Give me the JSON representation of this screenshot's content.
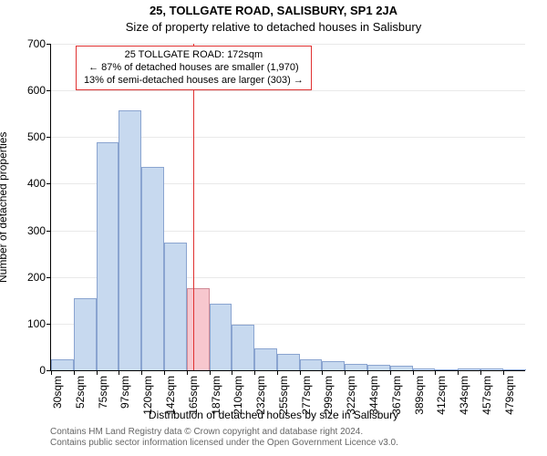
{
  "title": "25, TOLLGATE ROAD, SALISBURY, SP1 2JA",
  "subtitle": "Size of property relative to detached houses in Salisbury",
  "y_axis_label": "Number of detached properties",
  "x_axis_label": "Distribution of detached houses by size in Salisbury",
  "credits_line1": "Contains HM Land Registry data © Crown copyright and database right 2024.",
  "credits_line2": "Contains public sector information licensed under the Open Government Licence v3.0.",
  "chart": {
    "type": "histogram",
    "background_color": "#ffffff",
    "font_color": "#000000",
    "title_fontsize": 13,
    "subtitle_fontsize": 13,
    "axis_label_fontsize": 12,
    "tick_fontsize": 12,
    "credits_fontsize": 10,
    "credits_color": "#666666",
    "ylim": [
      0,
      700
    ],
    "ytick_step": 100,
    "y_ticks": [
      0,
      100,
      200,
      300,
      400,
      500,
      600,
      700
    ],
    "grid_y": true,
    "grid_color": "#e9e9e9",
    "bar_fill": "#c7d9ef",
    "bar_stroke": "#8aa4d0",
    "highlight_fill": "#f7c7ce",
    "highlight_stroke": "#d08a96",
    "xlim": [
      30,
      502
    ],
    "marker_line": {
      "x": 172,
      "color": "#e03131",
      "width": 1
    },
    "annotation": {
      "lines": [
        "25 TOLLGATE ROAD: 172sqm",
        "← 87% of detached houses are smaller (1,970)",
        "13% of semi-detached houses are larger (303) →"
      ],
      "border_color": "#e03131",
      "text_color": "#000000",
      "fontsize": 11,
      "x_center": 172
    },
    "bar_width_sqm": 22.5,
    "bars": [
      {
        "x0": 30,
        "count": 24,
        "label": "30sqm"
      },
      {
        "x0": 52.5,
        "count": 155,
        "label": "52sqm"
      },
      {
        "x0": 75,
        "count": 488,
        "label": "75sqm"
      },
      {
        "x0": 97.5,
        "count": 558,
        "label": "97sqm"
      },
      {
        "x0": 120,
        "count": 436,
        "label": "120sqm"
      },
      {
        "x0": 142.5,
        "count": 274,
        "label": "142sqm"
      },
      {
        "x0": 165,
        "count": 176,
        "label": "165sqm",
        "highlight": true
      },
      {
        "x0": 187.5,
        "count": 143,
        "label": "187sqm"
      },
      {
        "x0": 210,
        "count": 98,
        "label": "210sqm"
      },
      {
        "x0": 232.5,
        "count": 46,
        "label": "232sqm"
      },
      {
        "x0": 255,
        "count": 36,
        "label": "255sqm"
      },
      {
        "x0": 277.5,
        "count": 23,
        "label": "277sqm"
      },
      {
        "x0": 300,
        "count": 20,
        "label": "299sqm"
      },
      {
        "x0": 322.5,
        "count": 13,
        "label": "322sqm"
      },
      {
        "x0": 345,
        "count": 12,
        "label": "344sqm"
      },
      {
        "x0": 367.5,
        "count": 9,
        "label": "367sqm"
      },
      {
        "x0": 390,
        "count": 4,
        "label": "389sqm"
      },
      {
        "x0": 412.5,
        "count": 2,
        "label": "412sqm"
      },
      {
        "x0": 435,
        "count": 3,
        "label": "434sqm"
      },
      {
        "x0": 457.5,
        "count": 3,
        "label": "457sqm"
      },
      {
        "x0": 480,
        "count": 2,
        "label": "479sqm"
      }
    ]
  }
}
